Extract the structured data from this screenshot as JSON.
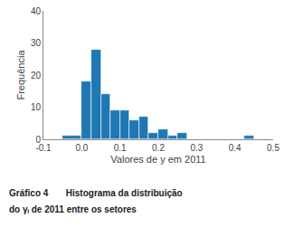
{
  "chart_data": {
    "type": "histogram",
    "xlabel": "Valores de y em 2011",
    "ylabel": "Frequência",
    "annotations": [
      "Gráfico 4       Histograma da distribuição",
      "do γᵢ de 2011 entre os setores"
    ],
    "bins": [
      -0.05,
      0.0,
      0.025,
      0.05,
      0.075,
      0.1,
      0.125,
      0.15,
      0.175,
      0.2,
      0.225,
      0.25,
      0.275,
      0.4,
      0.425,
      0.45
    ],
    "values": [
      1,
      18,
      28,
      14,
      9,
      9,
      6,
      7,
      2,
      3,
      1,
      2,
      0,
      0,
      1
    ],
    "xlim": [
      -0.1,
      0.5
    ],
    "ylim": [
      0,
      40
    ],
    "xticks": [
      -0.1,
      {
        "value": 0,
        "label": "0.0"
      },
      0.1,
      0.2,
      0.3,
      0.4,
      0.5
    ],
    "yticks": [
      0,
      10,
      20,
      30,
      40
    ],
    "grid": false
  }
}
